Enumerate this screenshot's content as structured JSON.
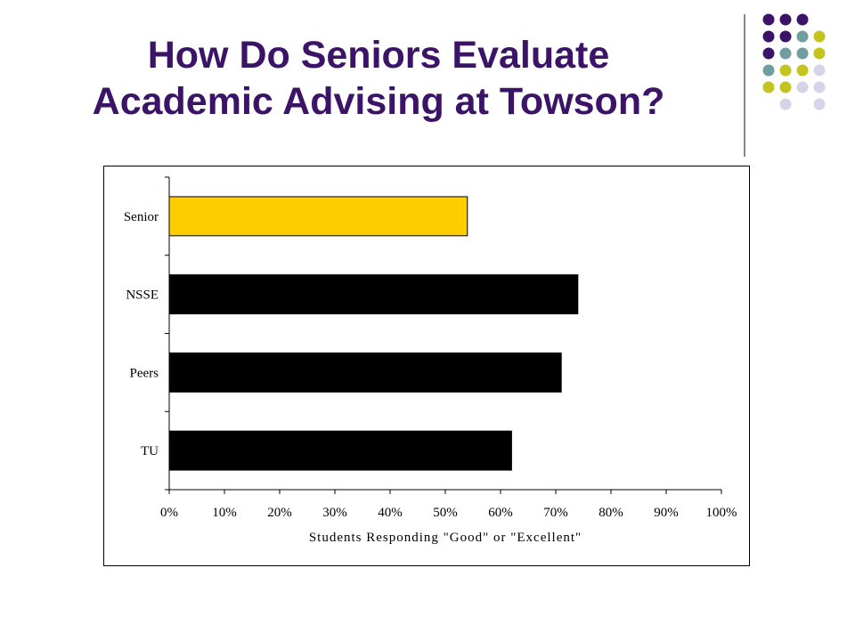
{
  "slide": {
    "title_line1": "How Do Seniors Evaluate",
    "title_line2": "Academic Advising at Towson?",
    "title_color": "#3b1467"
  },
  "decoration": {
    "dot_colors": {
      "purple": "#3b1467",
      "teal": "#6f9ea0",
      "olive": "#c4c41e",
      "lavender": "#d5d5ea"
    },
    "dot_rows": [
      [
        "",
        "purple",
        "purple",
        "purple",
        ""
      ],
      [
        "",
        "purple",
        "purple",
        "teal",
        "olive"
      ],
      [
        "",
        "purple",
        "teal",
        "teal",
        "olive"
      ],
      [
        "",
        "teal",
        "olive",
        "olive",
        "lavender"
      ],
      [
        "",
        "olive",
        "olive",
        "lavender",
        "lavender"
      ],
      [
        "",
        "",
        "lavender",
        "",
        "lavender"
      ]
    ]
  },
  "chart_data": {
    "type": "bar",
    "orientation": "horizontal",
    "categories": [
      "Senior",
      "NSSE",
      "Peers",
      "TU"
    ],
    "values": [
      54,
      74,
      71,
      62
    ],
    "bar_colors": [
      "#ffcc00",
      "#000000",
      "#000000",
      "#000000"
    ],
    "xlabel": "Students Responding \"Good\" or \"Excellent\"",
    "xlim": [
      0,
      100
    ],
    "x_ticks": [
      "0%",
      "10%",
      "20%",
      "30%",
      "40%",
      "50%",
      "60%",
      "70%",
      "80%",
      "90%",
      "100%"
    ],
    "grid": false,
    "legend": "none"
  }
}
